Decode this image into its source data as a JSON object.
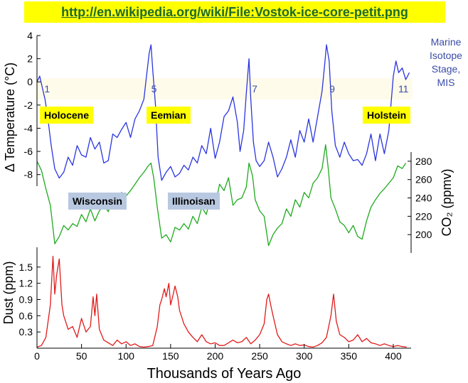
{
  "url": "http://en.wikipedia.org/wiki/File:Vostok-ice-core-petit.png",
  "mis_title": [
    "Marine",
    "Isotope",
    "Stage,",
    "MIS"
  ],
  "periods": [
    {
      "label": "Holocene",
      "kind": "warm"
    },
    {
      "label": "Eemian",
      "kind": "warm"
    },
    {
      "label": "Holstein",
      "kind": "warm"
    },
    {
      "label": "Wisconsin",
      "kind": "cold"
    },
    {
      "label": "Illinoisan",
      "kind": "cold"
    }
  ],
  "colors": {
    "temperature": "#2a35e0",
    "co2": "#1faa1f",
    "dust": "#e01b1b",
    "mis_band": "#fffbea",
    "mis_text": "#3a4ca8",
    "banner": "#ffff00",
    "warm_label_bg": "#ffff00",
    "cold_label_bg": "#b8c8e0"
  },
  "chart_data": {
    "type": "line",
    "xlabel": "Thousands of Years Ago",
    "xlim": [
      0,
      420
    ],
    "x_ticks": [
      0,
      50,
      100,
      150,
      200,
      250,
      300,
      350,
      400
    ],
    "axes": {
      "temperature": {
        "label": "Δ Temperature (°C)",
        "ylim": [
          -9,
          4
        ],
        "ticks": [
          4,
          2,
          0,
          -2,
          -4,
          -6,
          -8
        ]
      },
      "co2": {
        "label": "CO₂ (ppmv)",
        "ylim": [
          180,
          290
        ],
        "ticks": [
          200,
          220,
          240,
          260,
          280
        ]
      },
      "dust": {
        "label": "Dust (ppm)",
        "ylim": [
          0,
          1.8
        ],
        "ticks": [
          0.3,
          0.6,
          0.9,
          1.2,
          1.5
        ]
      }
    },
    "mis_stages": [
      {
        "label": "1",
        "x": 5
      },
      {
        "label": "5",
        "x": 125
      },
      {
        "label": "7",
        "x": 238
      },
      {
        "label": "9",
        "x": 325
      },
      {
        "label": "11",
        "x": 405
      }
    ],
    "series": [
      {
        "key": "temperature",
        "x": [
          0,
          3,
          6,
          9,
          12,
          16,
          20,
          25,
          30,
          35,
          40,
          45,
          50,
          55,
          60,
          65,
          70,
          75,
          80,
          85,
          90,
          95,
          100,
          105,
          110,
          115,
          120,
          123,
          126,
          128,
          130,
          133,
          136,
          140,
          145,
          150,
          155,
          160,
          165,
          170,
          175,
          180,
          185,
          190,
          195,
          200,
          205,
          210,
          215,
          220,
          225,
          228,
          232,
          235,
          238,
          240,
          243,
          246,
          250,
          255,
          260,
          265,
          270,
          275,
          280,
          285,
          290,
          295,
          300,
          305,
          310,
          315,
          320,
          323,
          325,
          328,
          331,
          335,
          340,
          345,
          350,
          355,
          360,
          365,
          370,
          375,
          380,
          385,
          390,
          395,
          400,
          403,
          406,
          410,
          414,
          418
        ],
        "values": [
          0,
          0.5,
          -0.5,
          -1.5,
          -3,
          -5.5,
          -7.5,
          -8.3,
          -7.8,
          -6.5,
          -7.2,
          -5.5,
          -6.3,
          -6.5,
          -4.8,
          -5.8,
          -5.2,
          -7,
          -6.8,
          -4.5,
          -4.8,
          -4.1,
          -3.5,
          -4.8,
          -3.2,
          -2.5,
          -1.5,
          0.5,
          2.5,
          3.2,
          1,
          -2,
          -6.5,
          -8.5,
          -7.8,
          -7.3,
          -8.2,
          -7.9,
          -7.2,
          -7.6,
          -6.5,
          -7,
          -5.5,
          -6.2,
          -4,
          -6.6,
          -5.2,
          -3,
          -2.5,
          -1.3,
          -3.5,
          -6,
          -4.2,
          -1,
          2,
          -1.5,
          -5.2,
          -6.8,
          -7.3,
          -6.8,
          -5.2,
          -6.5,
          -8.2,
          -7.5,
          -6.5,
          -5,
          -6.5,
          -4.2,
          -5.2,
          -3.2,
          -5.2,
          -3,
          -0.8,
          1.5,
          3.2,
          1.8,
          -2.5,
          -5.5,
          -6.5,
          -5.2,
          -6.2,
          -6.8,
          -6.7,
          -7.2,
          -6.2,
          -4.5,
          -6.8,
          -4.5,
          -6.2,
          -4.2,
          0.5,
          1.8,
          0.8,
          1.2,
          0.2,
          0.8
        ]
      },
      {
        "key": "co2",
        "x": [
          0,
          5,
          10,
          15,
          20,
          25,
          30,
          35,
          40,
          45,
          50,
          55,
          60,
          65,
          70,
          75,
          80,
          85,
          90,
          95,
          100,
          105,
          110,
          115,
          120,
          125,
          128,
          131,
          135,
          140,
          145,
          150,
          155,
          160,
          165,
          170,
          175,
          180,
          185,
          190,
          195,
          200,
          205,
          210,
          215,
          220,
          225,
          230,
          235,
          238,
          242,
          245,
          250,
          255,
          260,
          265,
          270,
          275,
          280,
          285,
          290,
          295,
          300,
          305,
          310,
          315,
          320,
          324,
          327,
          330,
          335,
          340,
          345,
          350,
          355,
          360,
          365,
          370,
          375,
          380,
          385,
          390,
          395,
          400,
          405,
          410,
          414
        ],
        "values": [
          280,
          270,
          250,
          232,
          190,
          198,
          210,
          205,
          212,
          209,
          222,
          214,
          228,
          215,
          226,
          232,
          225,
          240,
          232,
          246,
          242,
          248,
          255,
          262,
          268,
          275,
          278,
          262,
          230,
          196,
          200,
          192,
          208,
          205,
          212,
          206,
          220,
          212,
          230,
          222,
          240,
          232,
          255,
          248,
          262,
          232,
          238,
          240,
          252,
          278,
          264,
          238,
          226,
          220,
          188,
          200,
          207,
          212,
          228,
          220,
          238,
          230,
          246,
          240,
          256,
          262,
          272,
          298,
          272,
          240,
          228,
          214,
          210,
          202,
          210,
          198,
          195,
          215,
          230,
          238,
          245,
          250,
          256,
          262,
          275,
          272,
          278
        ]
      },
      {
        "key": "dust",
        "x": [
          0,
          5,
          10,
          15,
          18,
          20,
          22,
          25,
          28,
          30,
          35,
          40,
          45,
          50,
          55,
          60,
          63,
          65,
          67,
          70,
          75,
          80,
          85,
          90,
          95,
          100,
          105,
          110,
          115,
          120,
          125,
          130,
          135,
          138,
          140,
          143,
          145,
          148,
          150,
          153,
          155,
          158,
          160,
          165,
          170,
          175,
          180,
          185,
          190,
          195,
          200,
          205,
          210,
          215,
          220,
          225,
          230,
          235,
          240,
          245,
          250,
          255,
          258,
          260,
          263,
          265,
          270,
          275,
          280,
          285,
          290,
          295,
          300,
          305,
          310,
          315,
          320,
          325,
          330,
          333,
          336,
          340,
          345,
          350,
          355,
          360,
          365,
          370,
          375,
          380,
          385,
          390,
          395,
          400,
          405,
          410,
          415
        ],
        "values": [
          0.02,
          0.05,
          0.2,
          0.8,
          1.7,
          1.0,
          1.35,
          1.65,
          0.8,
          0.6,
          0.35,
          0.4,
          0.2,
          0.55,
          0.3,
          0.4,
          0.95,
          0.6,
          1.0,
          0.35,
          0.15,
          0.1,
          0.05,
          0.15,
          0.08,
          0.12,
          0.05,
          0.08,
          0.03,
          0.02,
          0.03,
          0.05,
          0.4,
          0.8,
          0.9,
          1.1,
          0.95,
          1.2,
          0.8,
          1.0,
          1.15,
          0.95,
          0.7,
          0.45,
          0.3,
          0.2,
          0.12,
          0.25,
          0.12,
          0.08,
          0.1,
          0.05,
          0.05,
          0.1,
          0.15,
          0.1,
          0.12,
          0.2,
          0.08,
          0.15,
          0.25,
          0.45,
          0.9,
          1.0,
          0.75,
          0.6,
          0.25,
          0.12,
          0.08,
          0.05,
          0.08,
          0.05,
          0.06,
          0.03,
          0.02,
          0.05,
          0.1,
          0.2,
          0.6,
          1.0,
          0.5,
          0.25,
          0.2,
          0.12,
          0.15,
          0.25,
          0.12,
          0.18,
          0.1,
          0.08,
          0.05,
          0.08,
          0.05,
          0.03,
          0.05,
          0.03,
          0.02
        ]
      }
    ]
  }
}
